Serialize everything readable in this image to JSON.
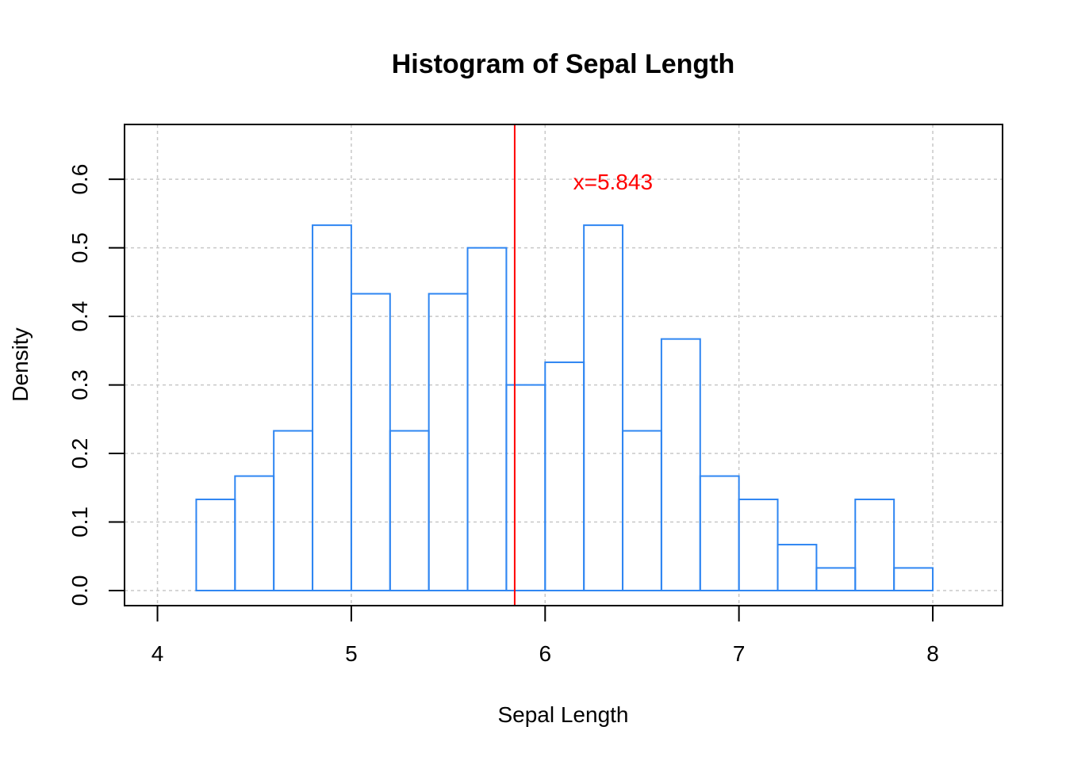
{
  "chart_data": {
    "type": "bar",
    "title": "Histogram of Sepal Length",
    "xlabel": "Sepal Length",
    "ylabel": "Density",
    "xlim": [
      3.83,
      8.36
    ],
    "ylim": [
      -0.022,
      0.68
    ],
    "x_ticks": [
      4,
      5,
      6,
      7,
      8
    ],
    "y_ticks": [
      0.0,
      0.1,
      0.2,
      0.3,
      0.4,
      0.5,
      0.6
    ],
    "x_tick_labels": [
      "4",
      "5",
      "6",
      "7",
      "8"
    ],
    "y_tick_labels": [
      "0.0",
      "0.1",
      "0.2",
      "0.3",
      "0.4",
      "0.5",
      "0.6"
    ],
    "grid": true,
    "bin_edges": [
      4.2,
      4.4,
      4.6,
      4.8,
      5.0,
      5.2,
      5.4,
      5.6,
      5.8,
      6.0,
      6.2,
      6.4,
      6.6,
      6.8,
      7.0,
      7.2,
      7.4,
      7.6,
      7.8,
      8.0
    ],
    "values": [
      0.133,
      0.167,
      0.233,
      0.533,
      0.433,
      0.233,
      0.433,
      0.5,
      0.3,
      0.333,
      0.533,
      0.233,
      0.367,
      0.167,
      0.133,
      0.067,
      0.033,
      0.133,
      0.033
    ],
    "bar_color": "#2f86f2",
    "vline": {
      "x": 5.843,
      "color": "#ff0000",
      "label": "x=5.843",
      "label_x": 6.35,
      "label_y": 0.597
    }
  }
}
